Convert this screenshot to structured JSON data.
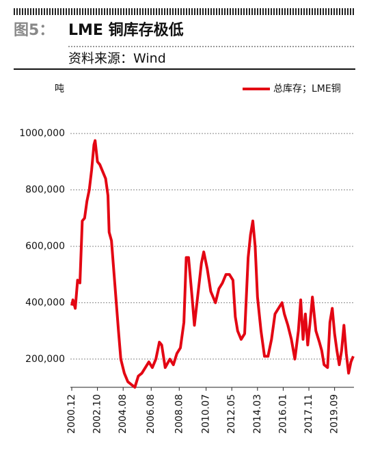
{
  "chart_data": {
    "type": "line",
    "figure_label": "图5：",
    "title": "LME 铜库存极低",
    "source": "资料来源：Wind",
    "y_label": "吨",
    "legend": "top-right",
    "grid": true,
    "x": [
      "2000.12",
      "2001.01",
      "2001.03",
      "2001.05",
      "2001.07",
      "2001.09",
      "2001.11",
      "2002.01",
      "2002.03",
      "2002.05",
      "2002.07",
      "2002.08",
      "2002.10",
      "2002.12",
      "2003.02",
      "2003.05",
      "2003.07",
      "2003.08",
      "2003.10",
      "2004.01",
      "2004.04",
      "2004.06",
      "2004.09",
      "2004.12",
      "2005.03",
      "2005.06",
      "2005.09",
      "2005.12",
      "2006.03",
      "2006.06",
      "2006.09",
      "2006.12",
      "2007.03",
      "2007.05",
      "2007.08",
      "2007.12",
      "2008.03",
      "2008.06",
      "2008.09",
      "2008.12",
      "2009.02",
      "2009.04",
      "2009.07",
      "2009.09",
      "2009.12",
      "2010.03",
      "2010.05",
      "2010.08",
      "2010.11",
      "2011.03",
      "2011.06",
      "2011.09",
      "2011.12",
      "2012.03",
      "2012.06",
      "2012.08",
      "2012.10",
      "2013.01",
      "2013.04",
      "2013.07",
      "2013.09",
      "2013.11",
      "2014.01",
      "2014.03",
      "2014.06",
      "2014.09",
      "2014.12",
      "2015.03",
      "2015.06",
      "2015.09",
      "2015.12",
      "2016.02",
      "2016.05",
      "2016.08",
      "2016.11",
      "2017.02",
      "2017.04",
      "2017.06",
      "2017.08",
      "2017.10",
      "2017.12",
      "2018.02",
      "2018.05",
      "2018.08",
      "2018.10",
      "2018.12",
      "2019.03",
      "2019.05",
      "2019.07",
      "2019.09",
      "2019.11",
      "2020.01",
      "2020.03",
      "2020.05",
      "2020.07",
      "2020.09",
      "2020.11",
      "2021.01"
    ],
    "series": [
      {
        "name": "总库存；LME铜",
        "color": "#e30613",
        "values": [
          390000,
          410000,
          380000,
          480000,
          470000,
          690000,
          700000,
          760000,
          800000,
          870000,
          960000,
          975000,
          900000,
          890000,
          870000,
          840000,
          780000,
          650000,
          620000,
          460000,
          300000,
          200000,
          150000,
          120000,
          110000,
          100000,
          140000,
          150000,
          170000,
          190000,
          170000,
          200000,
          260000,
          250000,
          170000,
          200000,
          180000,
          220000,
          240000,
          330000,
          560000,
          560000,
          420000,
          320000,
          430000,
          540000,
          580000,
          520000,
          440000,
          400000,
          450000,
          470000,
          500000,
          500000,
          480000,
          350000,
          300000,
          270000,
          290000,
          560000,
          640000,
          690000,
          600000,
          420000,
          300000,
          210000,
          210000,
          270000,
          360000,
          380000,
          400000,
          360000,
          320000,
          270000,
          200000,
          300000,
          410000,
          270000,
          360000,
          250000,
          330000,
          420000,
          300000,
          260000,
          230000,
          180000,
          170000,
          330000,
          380000,
          290000,
          230000,
          180000,
          230000,
          320000,
          220000,
          150000,
          190000,
          210000
        ]
      }
    ],
    "xlim": [
      "2000.12",
      "2021.01"
    ],
    "xticks": [
      "2000.12",
      "2002.10",
      "2004.08",
      "2006.08",
      "2008.08",
      "2010.07",
      "2012.05",
      "2014.03",
      "2016.01",
      "2017.11",
      "2019.09"
    ],
    "ylim": [
      100000,
      1050000
    ],
    "yticks": [
      {
        "value": 200000,
        "label": "200,000"
      },
      {
        "value": 400000,
        "label": "400,000"
      },
      {
        "value": 600000,
        "label": "600,000"
      },
      {
        "value": 800000,
        "label": "800,000"
      },
      {
        "value": 1000000,
        "label": "1000,000"
      }
    ]
  }
}
